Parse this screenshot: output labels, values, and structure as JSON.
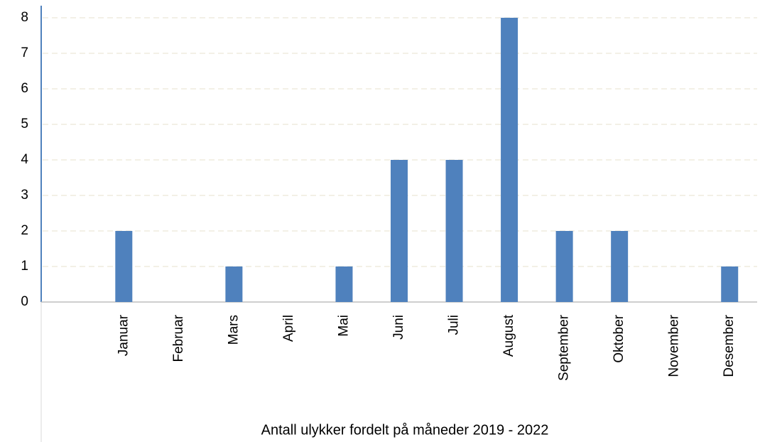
{
  "chart_data": {
    "type": "bar",
    "title": "Antall ulykker fordelt på måneder 2019 - 2022",
    "categories": [
      null,
      "Januar",
      "Februar",
      "Mars",
      "April",
      "Mai",
      "Juni",
      "Juli",
      "August",
      "September",
      "Oktober",
      "November",
      "Desember"
    ],
    "values": [
      null,
      2,
      0,
      1,
      0,
      1,
      4,
      4,
      8,
      2,
      2,
      0,
      1
    ],
    "color": "#4f81bd",
    "ylim": [
      0,
      8
    ],
    "yticks": [
      0,
      1,
      2,
      3,
      4,
      5,
      6,
      7,
      8
    ],
    "grid": true
  }
}
